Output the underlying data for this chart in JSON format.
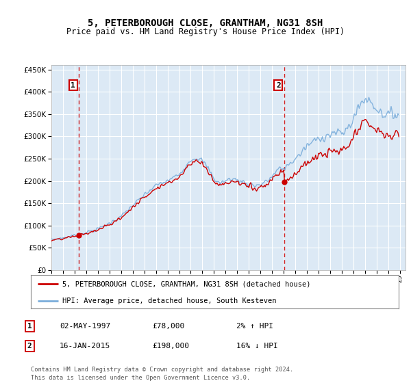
{
  "title": "5, PETERBOROUGH CLOSE, GRANTHAM, NG31 8SH",
  "subtitle": "Price paid vs. HM Land Registry's House Price Index (HPI)",
  "legend_line1": "5, PETERBOROUGH CLOSE, GRANTHAM, NG31 8SH (detached house)",
  "legend_line2": "HPI: Average price, detached house, South Kesteven",
  "annotation1_date": "02-MAY-1997",
  "annotation1_price": "£78,000",
  "annotation1_hpi": "2% ↑ HPI",
  "annotation2_date": "16-JAN-2015",
  "annotation2_price": "£198,000",
  "annotation2_hpi": "16% ↓ HPI",
  "footer1": "Contains HM Land Registry data © Crown copyright and database right 2024.",
  "footer2": "This data is licensed under the Open Government Licence v3.0.",
  "ylim": [
    0,
    460000
  ],
  "yticks": [
    0,
    50000,
    100000,
    150000,
    200000,
    250000,
    300000,
    350000,
    400000,
    450000
  ],
  "plot_bg_color": "#dce9f5",
  "red_line_color": "#cc0000",
  "blue_line_color": "#7aaddb",
  "vline_color": "#cc0000",
  "grid_color": "#ffffff",
  "sale1_year": 1997.37,
  "sale1_value": 78000,
  "sale2_year": 2015.04,
  "sale2_value": 198000,
  "xlim_start": 1995.0,
  "xlim_end": 2025.5
}
